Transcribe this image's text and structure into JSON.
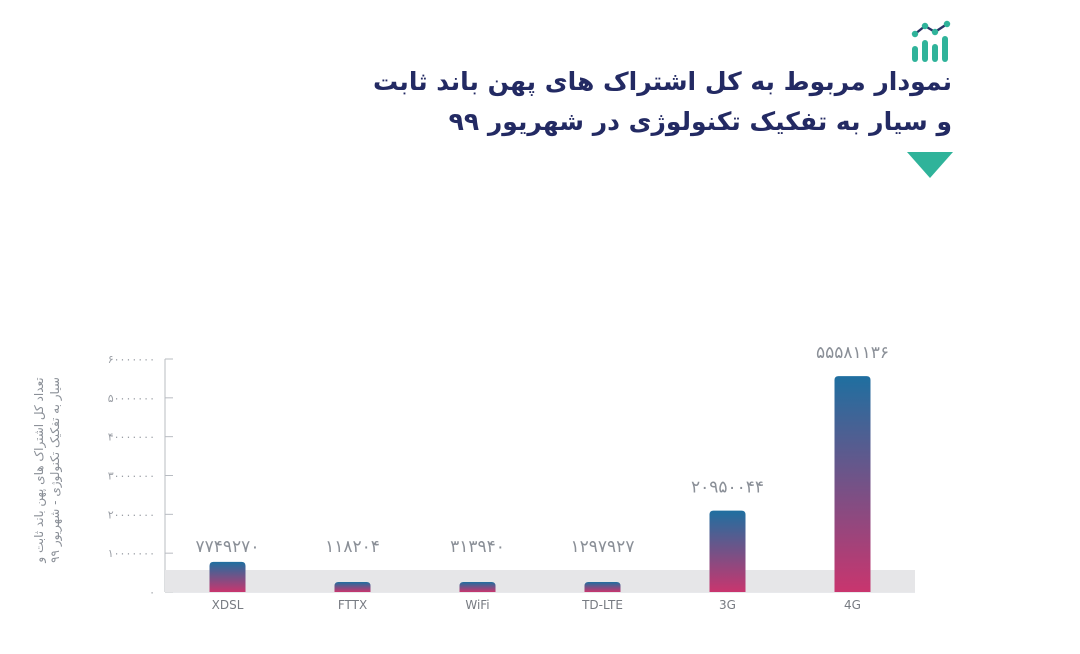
{
  "header": {
    "icon": "analytics-chart-icon",
    "title_line1": "نمودار مربوط به کل اشتراک های پهن باند ثابت",
    "title_line2": "و سیار به تفکیک تکنولوژی در شهریور ۹۹",
    "accent_color": "#2fb39a",
    "title_color": "#232a63"
  },
  "chart_data": {
    "type": "bar",
    "categories": [
      "XDSL",
      "FTTX",
      "WiFi",
      "TD-LTE",
      "3G",
      "4G"
    ],
    "values": [
      7749270,
      118204,
      313940,
      1297927,
      20950044,
      55581136
    ],
    "value_labels": [
      "۷۷۴۹۲۷۰",
      "۱۱۸۲۰۴",
      "۳۱۳۹۴۰",
      "۱۲۹۷۹۲۷",
      "۲۰۹۵۰۰۴۴",
      "۵۵۵۸۱۱۳۶"
    ],
    "ylim": [
      0,
      60000000
    ],
    "yticks": [
      0,
      10000000,
      20000000,
      30000000,
      40000000,
      50000000,
      60000000
    ],
    "ytick_labels": [
      "۰",
      "۱۰۰۰۰۰۰۰",
      "۲۰۰۰۰۰۰۰",
      "۳۰۰۰۰۰۰۰",
      "۴۰۰۰۰۰۰۰",
      "۵۰۰۰۰۰۰۰",
      "۶۰۰۰۰۰۰۰"
    ],
    "ylabel_line1": "تعداد کل اشتراک های پهن باند ثابت و",
    "ylabel_line2": "سیار به تفکیک تکنولوژی - شهریور ۹۹",
    "grid": false,
    "baseline_band_color": "#e6e6e8",
    "bar_gradient_top": "#1f6fa0",
    "bar_gradient_bottom": "#c9356e"
  }
}
